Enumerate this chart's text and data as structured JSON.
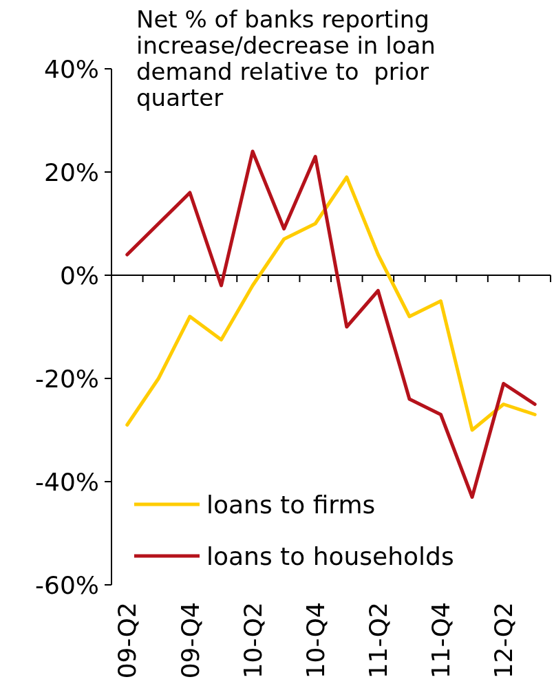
{
  "chart_data": {
    "type": "line",
    "title": "Net % of banks reporting increase/decrease in loan demand relative to  prior quarter",
    "categories": [
      "09-Q2",
      null,
      "09-Q4",
      null,
      "10-Q2",
      null,
      "10-Q4",
      null,
      "11-Q2",
      null,
      "11-Q4",
      null,
      "12-Q2",
      null
    ],
    "series": [
      {
        "name": "loans to firms",
        "color": "#ffcc00",
        "values": [
          -29,
          -20,
          -8,
          -12.5,
          -2,
          7,
          10,
          19,
          4,
          -8,
          -5,
          -30,
          -25,
          -27
        ]
      },
      {
        "name": "loans to households",
        "color": "#b5121b",
        "values": [
          4,
          10,
          16,
          -2,
          24,
          9,
          23,
          -10,
          -3,
          -24,
          -27,
          -43,
          -21,
          -25
        ]
      }
    ],
    "ylim": [
      -60,
      40
    ],
    "yticks": [
      {
        "value": -60,
        "label": "-60%"
      },
      {
        "value": -40,
        "label": "-40%"
      },
      {
        "value": -20,
        "label": "-20%"
      },
      {
        "value": 0,
        "label": "0%"
      },
      {
        "value": 20,
        "label": "20%"
      },
      {
        "value": 40,
        "label": "40%"
      }
    ],
    "legend": "bottom left",
    "marker": "none",
    "line_style": "solid"
  }
}
